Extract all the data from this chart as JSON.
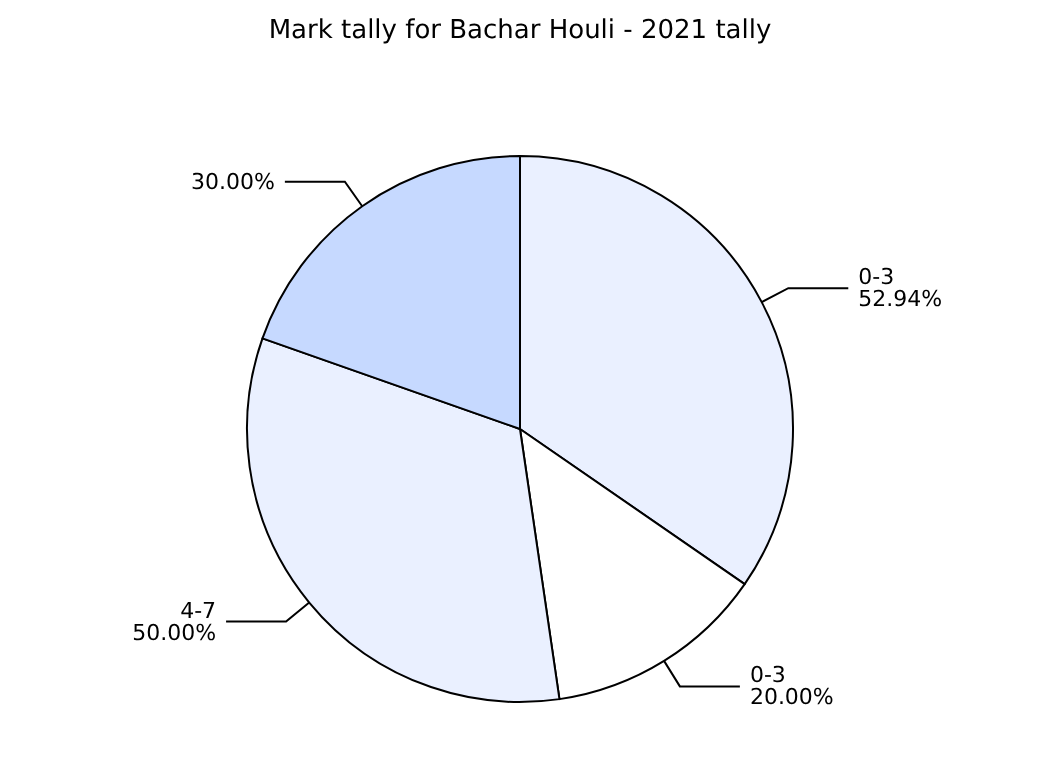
{
  "chart_data": {
    "type": "pie",
    "title": "Mark tally for Bachar Houli - 2021 tally",
    "categories": [
      "0-3",
      "0-3",
      "4-7",
      null
    ],
    "values": [
      52.94,
      20,
      50,
      30
    ],
    "value_labels": [
      "52.94%",
      "20.00%",
      "50.00%",
      "30.00%"
    ],
    "colors": [
      "#eaf0ff",
      "#ffffff",
      "#eaf0ff",
      "#c6d9ff"
    ]
  }
}
